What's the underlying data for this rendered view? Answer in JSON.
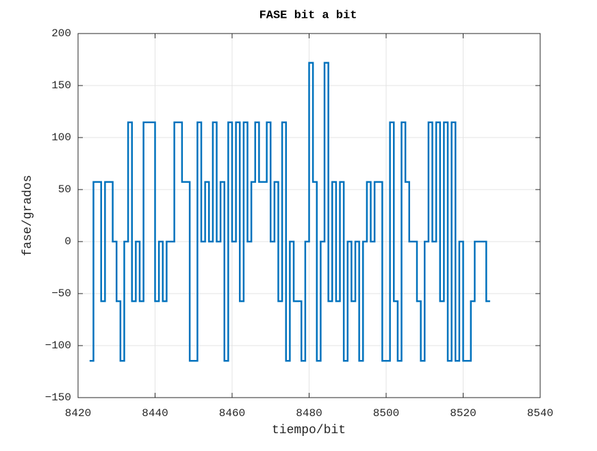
{
  "chart_data": {
    "type": "stairs",
    "title": "FASE bit a bit",
    "xlabel": "tiempo/bit",
    "ylabel": "fase/grados",
    "x": [
      8423,
      8424,
      8426,
      8427,
      8429,
      8430,
      8431,
      8432,
      8433,
      8434,
      8435,
      8436,
      8437,
      8440,
      8441,
      8442,
      8443,
      8445,
      8447,
      8449,
      8451,
      8452,
      8453,
      8454,
      8455,
      8456,
      8457,
      8458,
      8459,
      8460,
      8461,
      8462,
      8463,
      8464,
      8465,
      8466,
      8467,
      8469,
      8470,
      8471,
      8472,
      8473,
      8474,
      8475,
      8476,
      8478,
      8479,
      8480,
      8481,
      8482,
      8483,
      8484,
      8485,
      8486,
      8487,
      8488,
      8489,
      8490,
      8491,
      8492,
      8493,
      8494,
      8495,
      8496,
      8497,
      8499,
      8501,
      8502,
      8503,
      8504,
      8505,
      8506,
      8508,
      8509,
      8510,
      8511,
      8512,
      8513,
      8514,
      8515,
      8516,
      8517,
      8518,
      8519,
      8520,
      8522,
      8523,
      8526,
      8527
    ],
    "series": [
      {
        "color": "#0072bd",
        "values": [
          -114.6,
          57.3,
          -57.3,
          57.3,
          0,
          -57.3,
          -114.6,
          0,
          114.6,
          -57.3,
          0,
          -57.3,
          114.6,
          -57.3,
          0,
          -57.3,
          0,
          114.6,
          57.3,
          -114.6,
          114.6,
          0,
          57.3,
          0,
          114.6,
          0,
          57.3,
          -114.6,
          114.6,
          0,
          114.6,
          -57.3,
          114.6,
          0,
          57.3,
          114.6,
          57.3,
          114.6,
          0,
          57.3,
          -57.3,
          114.6,
          -114.6,
          0,
          -57.3,
          -114.6,
          0,
          171.9,
          57.3,
          -114.6,
          0,
          171.9,
          -57.3,
          57.3,
          -57.3,
          57.3,
          -114.6,
          0,
          -57.3,
          0,
          -114.6,
          0,
          57.3,
          0,
          57.3,
          -114.6,
          114.6,
          -57.3,
          -114.6,
          114.6,
          57.3,
          0,
          -57.3,
          -114.6,
          0,
          114.6,
          0,
          114.6,
          -57.3,
          114.6,
          -114.6,
          114.6,
          -114.6,
          0,
          -114.6,
          -57.3,
          0,
          -57.3,
          -57.3
        ]
      }
    ],
    "xlim": [
      8420,
      8540
    ],
    "xticks": [
      8420,
      8440,
      8460,
      8480,
      8500,
      8520,
      8540
    ],
    "ylim": [
      -150,
      200
    ],
    "yticks": [
      {
        "value": -150,
        "label": "−150"
      },
      {
        "value": -100,
        "label": "−100"
      },
      {
        "value": -50,
        "label": "−50"
      },
      0,
      50,
      100,
      150,
      200
    ],
    "grid": true
  }
}
